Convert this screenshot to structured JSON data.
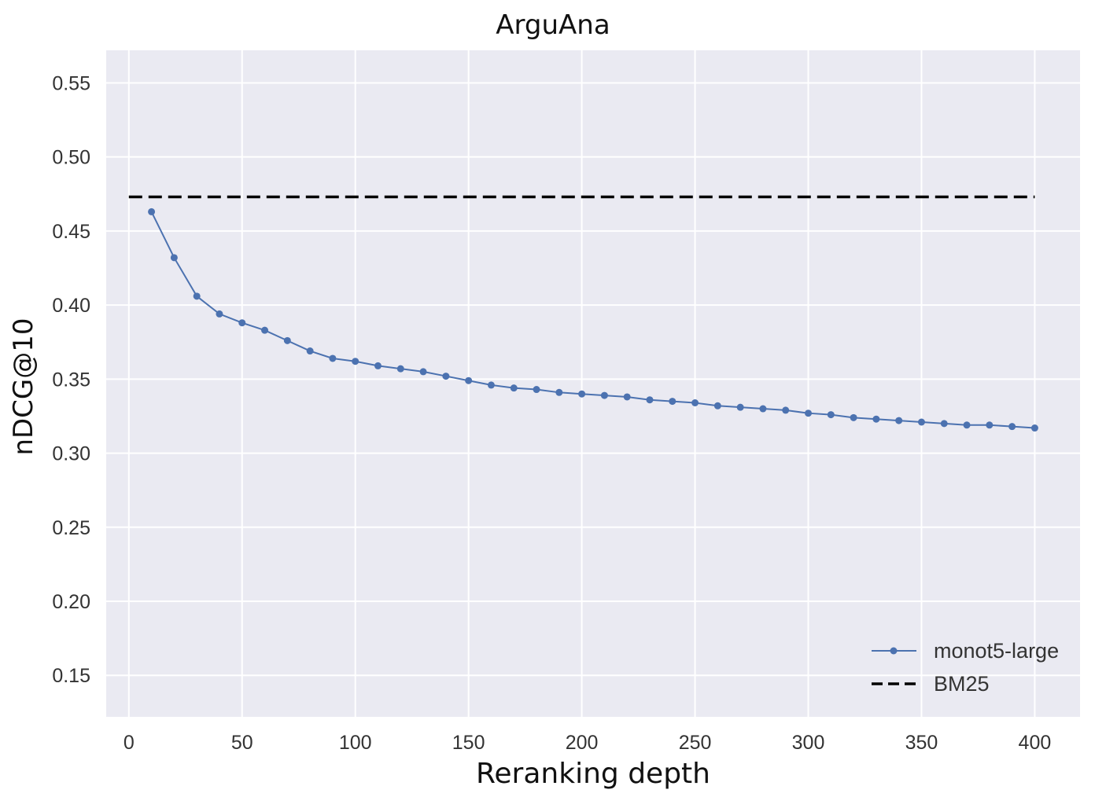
{
  "chart_data": {
    "type": "line",
    "title": "ArguAna",
    "xlabel": "Reranking depth",
    "ylabel": "nDCG@10",
    "xlim": [
      -10,
      420
    ],
    "ylim": [
      0.122,
      0.572
    ],
    "xticks": [
      0,
      50,
      100,
      150,
      200,
      250,
      300,
      350,
      400
    ],
    "yticks": [
      0.15,
      0.2,
      0.25,
      0.3,
      0.35,
      0.4,
      0.45,
      0.5,
      0.55
    ],
    "grid": true,
    "legend_position": "lower right",
    "series": [
      {
        "name": "monot5-large",
        "style": "solid line with circle markers",
        "color": "#4c72b0",
        "x": [
          10,
          20,
          30,
          40,
          50,
          60,
          70,
          80,
          90,
          100,
          110,
          120,
          130,
          140,
          150,
          160,
          170,
          180,
          190,
          200,
          210,
          220,
          230,
          240,
          250,
          260,
          270,
          280,
          290,
          300,
          310,
          320,
          330,
          340,
          350,
          360,
          370,
          380,
          390,
          400
        ],
        "values": [
          0.463,
          0.432,
          0.406,
          0.394,
          0.388,
          0.383,
          0.376,
          0.369,
          0.364,
          0.362,
          0.359,
          0.357,
          0.355,
          0.352,
          0.349,
          0.346,
          0.344,
          0.343,
          0.341,
          0.34,
          0.339,
          0.338,
          0.336,
          0.335,
          0.334,
          0.332,
          0.331,
          0.33,
          0.329,
          0.327,
          0.326,
          0.324,
          0.323,
          0.322,
          0.321,
          0.32,
          0.319,
          0.319,
          0.318,
          0.317
        ]
      },
      {
        "name": "BM25",
        "style": "dashed line",
        "color": "#000000",
        "x": [
          0,
          400
        ],
        "values": [
          0.473,
          0.473
        ]
      }
    ]
  },
  "labels": {
    "title": "ArguAna",
    "xlabel": "Reranking depth",
    "ylabel": "nDCG@10"
  },
  "legend": [
    {
      "label": "monot5-large"
    },
    {
      "label": "BM25"
    }
  ],
  "colors": {
    "plot_background": "#eaeaf2",
    "grid": "#ffffff",
    "series_line": "#4c72b0",
    "baseline": "#000000"
  }
}
